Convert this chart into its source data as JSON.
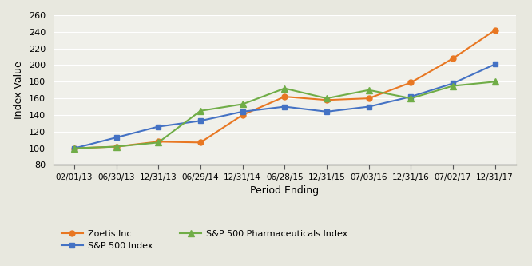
{
  "x_labels": [
    "02/01/13",
    "06/30/13",
    "12/31/13",
    "06/29/14",
    "12/31/14",
    "06/28/15",
    "12/31/15",
    "07/03/16",
    "12/31/16",
    "07/02/17",
    "12/31/17"
  ],
  "zoetis": [
    100,
    102,
    108,
    107,
    140,
    162,
    158,
    160,
    179,
    208,
    242
  ],
  "sp500": [
    100,
    113,
    126,
    133,
    144,
    150,
    144,
    150,
    162,
    178,
    201
  ],
  "sp500_pharma": [
    100,
    102,
    107,
    145,
    153,
    172,
    160,
    170,
    160,
    175,
    180
  ],
  "zoetis_color": "#E87722",
  "sp500_color": "#4472C4",
  "pharma_color": "#70AD47",
  "ylabel": "Index Value",
  "xlabel": "Period Ending",
  "ylim": [
    80,
    260
  ],
  "yticks": [
    80,
    100,
    120,
    140,
    160,
    180,
    200,
    220,
    240,
    260
  ],
  "legend_labels": [
    "Zoetis Inc.",
    "S&P 500 Index",
    "S&P 500 Pharmaceuticals Index"
  ],
  "bg_color": "#E8E8E8",
  "plot_bg": "#F5F5F0"
}
